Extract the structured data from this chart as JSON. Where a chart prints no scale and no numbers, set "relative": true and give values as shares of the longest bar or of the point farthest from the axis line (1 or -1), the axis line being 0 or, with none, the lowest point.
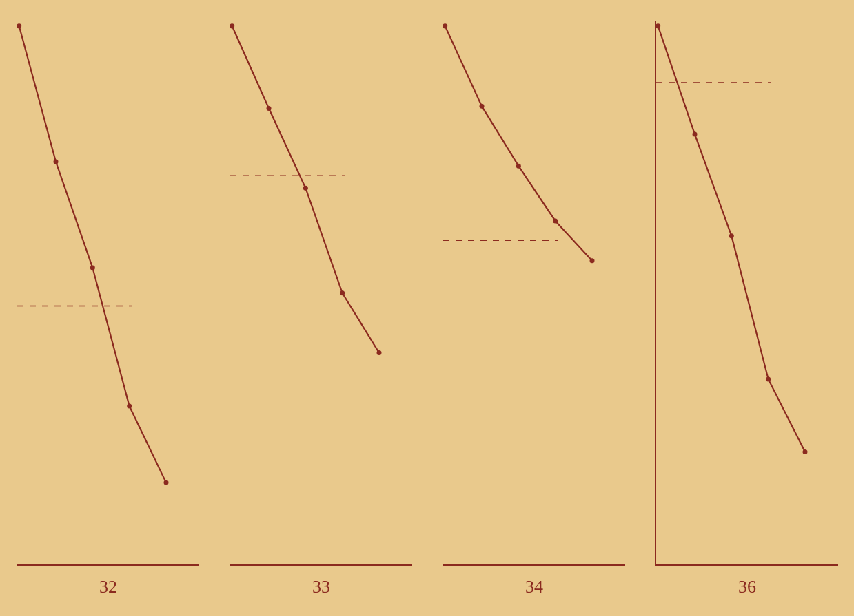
{
  "chart_data": [
    {
      "type": "line",
      "xlabel": "32",
      "relative": true,
      "marker": "circle",
      "line_style": "solid",
      "categories": [
        null,
        null,
        null,
        null,
        null
      ],
      "series": [
        {
          "color": "#8b2a1f",
          "values": [
            1.0,
            0.748,
            0.551,
            0.294,
            0.152
          ]
        }
      ],
      "ref_lines": [
        {
          "axis": "y",
          "value": 0.48,
          "color": "#8b2a1f",
          "line_style": "dashed"
        }
      ]
    },
    {
      "type": "line",
      "xlabel": "33",
      "relative": true,
      "marker": "circle",
      "line_style": "solid",
      "categories": [
        null,
        null,
        null,
        null,
        null
      ],
      "series": [
        {
          "color": "#8b2a1f",
          "values": [
            1.0,
            0.847,
            0.699,
            0.504,
            0.393
          ]
        }
      ],
      "ref_lines": [
        {
          "axis": "y",
          "value": 0.722,
          "color": "#8b2a1f",
          "line_style": "dashed"
        }
      ]
    },
    {
      "type": "line",
      "xlabel": "34",
      "relative": true,
      "marker": "circle",
      "line_style": "solid",
      "categories": [
        null,
        null,
        null,
        null,
        null
      ],
      "series": [
        {
          "color": "#8b2a1f",
          "values": [
            1.0,
            0.851,
            0.74,
            0.638,
            0.564
          ]
        }
      ],
      "ref_lines": [
        {
          "axis": "y",
          "value": 0.602,
          "color": "#8b2a1f",
          "line_style": "dashed"
        }
      ]
    },
    {
      "type": "line",
      "xlabel": "36",
      "relative": true,
      "marker": "circle",
      "line_style": "solid",
      "categories": [
        null,
        null,
        null,
        null,
        null
      ],
      "series": [
        {
          "color": "#8b2a1f",
          "values": [
            1.0,
            0.799,
            0.61,
            0.344,
            0.209
          ]
        }
      ],
      "ref_lines": [
        {
          "axis": "y",
          "value": 0.895,
          "color": "#8b2a1f",
          "line_style": "dashed"
        }
      ]
    }
  ]
}
